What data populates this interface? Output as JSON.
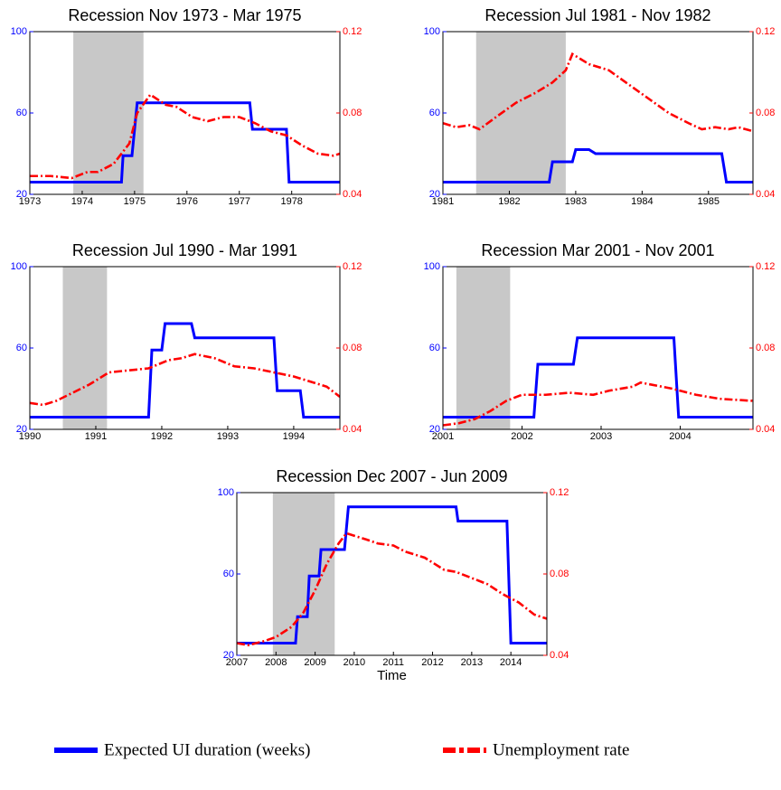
{
  "chart_data": [
    {
      "type": "line",
      "title": "Recession Nov 1973 - Mar 1975",
      "xlim": [
        1973,
        1978.92
      ],
      "xticks": [
        1973,
        1974,
        1975,
        1976,
        1977,
        1978
      ],
      "ylim": [
        20,
        100
      ],
      "yticks": [
        20,
        60,
        100
      ],
      "y2lim": [
        0.04,
        0.12
      ],
      "y2ticks": [
        0.04,
        0.08,
        0.12
      ],
      "recession": [
        1973.83,
        1975.17
      ],
      "series": [
        {
          "name": "Expected UI duration (weeks)",
          "color": "#0000ff",
          "style": "solid",
          "x": [
            1973,
            1974.75,
            1974.78,
            1974.95,
            1975.05,
            1977.2,
            1977.25,
            1977.9,
            1977.95,
            1978.92
          ],
          "values": [
            26,
            26,
            39,
            39,
            65,
            65,
            52,
            52,
            26,
            26
          ]
        },
        {
          "name": "Unemployment rate",
          "color": "#ff0000",
          "style": "dashdot",
          "axis": "y2",
          "x": [
            1973,
            1973.4,
            1973.8,
            1974.1,
            1974.3,
            1974.6,
            1974.9,
            1975.05,
            1975.3,
            1975.6,
            1975.8,
            1976.1,
            1976.4,
            1976.7,
            1977,
            1977.3,
            1977.6,
            1977.9,
            1978.2,
            1978.5,
            1978.8,
            1978.92
          ],
          "values": [
            0.049,
            0.049,
            0.048,
            0.051,
            0.051,
            0.055,
            0.065,
            0.08,
            0.089,
            0.084,
            0.083,
            0.078,
            0.076,
            0.078,
            0.078,
            0.075,
            0.071,
            0.069,
            0.064,
            0.06,
            0.059,
            0.06
          ]
        }
      ]
    },
    {
      "type": "line",
      "title": "Recession Jul 1981 - Nov 1982",
      "xlim": [
        1981,
        1985.67
      ],
      "xticks": [
        1981,
        1982,
        1983,
        1984,
        1985
      ],
      "ylim": [
        20,
        100
      ],
      "yticks": [
        20,
        60,
        100
      ],
      "y2lim": [
        0.04,
        0.12
      ],
      "y2ticks": [
        0.04,
        0.08,
        0.12
      ],
      "recession": [
        1981.5,
        1982.85
      ],
      "series": [
        {
          "color": "#0000ff",
          "style": "solid",
          "x": [
            1981,
            1982.6,
            1982.65,
            1982.95,
            1983,
            1983.2,
            1983.3,
            1985.2,
            1985.27,
            1985.67
          ],
          "values": [
            26,
            26,
            36,
            36,
            42,
            42,
            40,
            40,
            26,
            26
          ]
        },
        {
          "color": "#ff0000",
          "style": "dashdot",
          "axis": "y2",
          "x": [
            1981,
            1981.2,
            1981.4,
            1981.55,
            1981.8,
            1982.1,
            1982.4,
            1982.65,
            1982.85,
            1982.95,
            1983.2,
            1983.5,
            1983.8,
            1984.1,
            1984.4,
            1984.7,
            1984.9,
            1985.1,
            1985.3,
            1985.45,
            1985.67
          ],
          "values": [
            0.075,
            0.073,
            0.074,
            0.072,
            0.078,
            0.085,
            0.09,
            0.095,
            0.101,
            0.109,
            0.104,
            0.101,
            0.094,
            0.087,
            0.08,
            0.075,
            0.072,
            0.073,
            0.072,
            0.073,
            0.071
          ]
        }
      ]
    },
    {
      "type": "line",
      "title": "Recession Jul 1990 - Mar 1991",
      "xlim": [
        1990,
        1994.7
      ],
      "xticks": [
        1990,
        1991,
        1992,
        1993,
        1994
      ],
      "ylim": [
        20,
        100
      ],
      "yticks": [
        20,
        60,
        100
      ],
      "y2lim": [
        0.04,
        0.12
      ],
      "y2ticks": [
        0.04,
        0.08,
        0.12
      ],
      "recession": [
        1990.5,
        1991.17
      ],
      "series": [
        {
          "color": "#0000ff",
          "style": "solid",
          "x": [
            1990,
            1991.8,
            1991.85,
            1992,
            1992.05,
            1992.45,
            1992.5,
            1993.7,
            1993.75,
            1994.1,
            1994.15,
            1994.7
          ],
          "values": [
            26,
            26,
            59,
            59,
            72,
            72,
            65,
            65,
            39,
            39,
            26,
            26
          ]
        },
        {
          "color": "#ff0000",
          "style": "dashdot",
          "axis": "y2",
          "x": [
            1990,
            1990.2,
            1990.4,
            1990.65,
            1990.9,
            1991.2,
            1991.5,
            1991.8,
            1992.1,
            1992.3,
            1992.5,
            1992.8,
            1993.1,
            1993.4,
            1993.7,
            1994,
            1994.3,
            1994.5,
            1994.7
          ],
          "values": [
            0.053,
            0.052,
            0.054,
            0.058,
            0.062,
            0.068,
            0.069,
            0.07,
            0.074,
            0.075,
            0.077,
            0.075,
            0.071,
            0.07,
            0.068,
            0.066,
            0.063,
            0.061,
            0.056
          ]
        }
      ]
    },
    {
      "type": "line",
      "title": "Recession Mar 2001 - Nov 2001",
      "xlim": [
        2001,
        2004.92
      ],
      "xticks": [
        2001,
        2002,
        2003,
        2004
      ],
      "ylim": [
        20,
        100
      ],
      "yticks": [
        20,
        60,
        100
      ],
      "y2lim": [
        0.04,
        0.12
      ],
      "y2ticks": [
        0.04,
        0.08,
        0.12
      ],
      "recession": [
        2001.17,
        2001.85
      ],
      "series": [
        {
          "color": "#0000ff",
          "style": "solid",
          "x": [
            2001,
            2002.15,
            2002.2,
            2002.65,
            2002.7,
            2003.92,
            2003.98,
            2004.92
          ],
          "values": [
            26,
            26,
            52,
            52,
            65,
            65,
            26,
            26
          ]
        },
        {
          "color": "#ff0000",
          "style": "dashdot",
          "axis": "y2",
          "x": [
            2001,
            2001.2,
            2001.4,
            2001.6,
            2001.8,
            2002,
            2002.3,
            2002.6,
            2002.9,
            2003.1,
            2003.4,
            2003.5,
            2003.9,
            2004.2,
            2004.5,
            2004.92
          ],
          "values": [
            0.042,
            0.043,
            0.045,
            0.049,
            0.054,
            0.057,
            0.057,
            0.058,
            0.057,
            0.059,
            0.061,
            0.063,
            0.06,
            0.057,
            0.055,
            0.054
          ]
        }
      ]
    },
    {
      "type": "line",
      "title": "Recession Dec 2007 - Jun 2009",
      "x_label": "Time",
      "xlim": [
        2007,
        2014.92
      ],
      "xticks": [
        2007,
        2008,
        2009,
        2010,
        2011,
        2012,
        2013,
        2014
      ],
      "ylim": [
        20,
        100
      ],
      "yticks": [
        20,
        60,
        100
      ],
      "y2lim": [
        0.04,
        0.12
      ],
      "y2ticks": [
        0.04,
        0.08,
        0.12
      ],
      "recession": [
        2007.92,
        2009.5
      ],
      "series": [
        {
          "color": "#0000ff",
          "style": "solid",
          "x": [
            2007,
            2008.5,
            2008.55,
            2008.8,
            2008.85,
            2009.1,
            2009.15,
            2009.75,
            2009.85,
            2012.6,
            2012.65,
            2013.9,
            2014,
            2014.92
          ],
          "values": [
            26,
            26,
            39,
            39,
            59,
            59,
            72,
            72,
            93,
            93,
            86,
            86,
            26,
            26
          ]
        },
        {
          "color": "#ff0000",
          "style": "dashdot",
          "axis": "y2",
          "x": [
            2007,
            2007.3,
            2007.7,
            2008,
            2008.4,
            2008.7,
            2009,
            2009.3,
            2009.6,
            2009.8,
            2010.3,
            2010.6,
            2011,
            2011.3,
            2011.8,
            2012.3,
            2012.6,
            2013,
            2013.4,
            2013.8,
            2014.2,
            2014.6,
            2014.92
          ],
          "values": [
            0.046,
            0.045,
            0.047,
            0.049,
            0.054,
            0.061,
            0.072,
            0.085,
            0.095,
            0.1,
            0.097,
            0.095,
            0.094,
            0.091,
            0.088,
            0.082,
            0.081,
            0.078,
            0.075,
            0.07,
            0.066,
            0.06,
            0.058
          ]
        }
      ]
    }
  ]
}
